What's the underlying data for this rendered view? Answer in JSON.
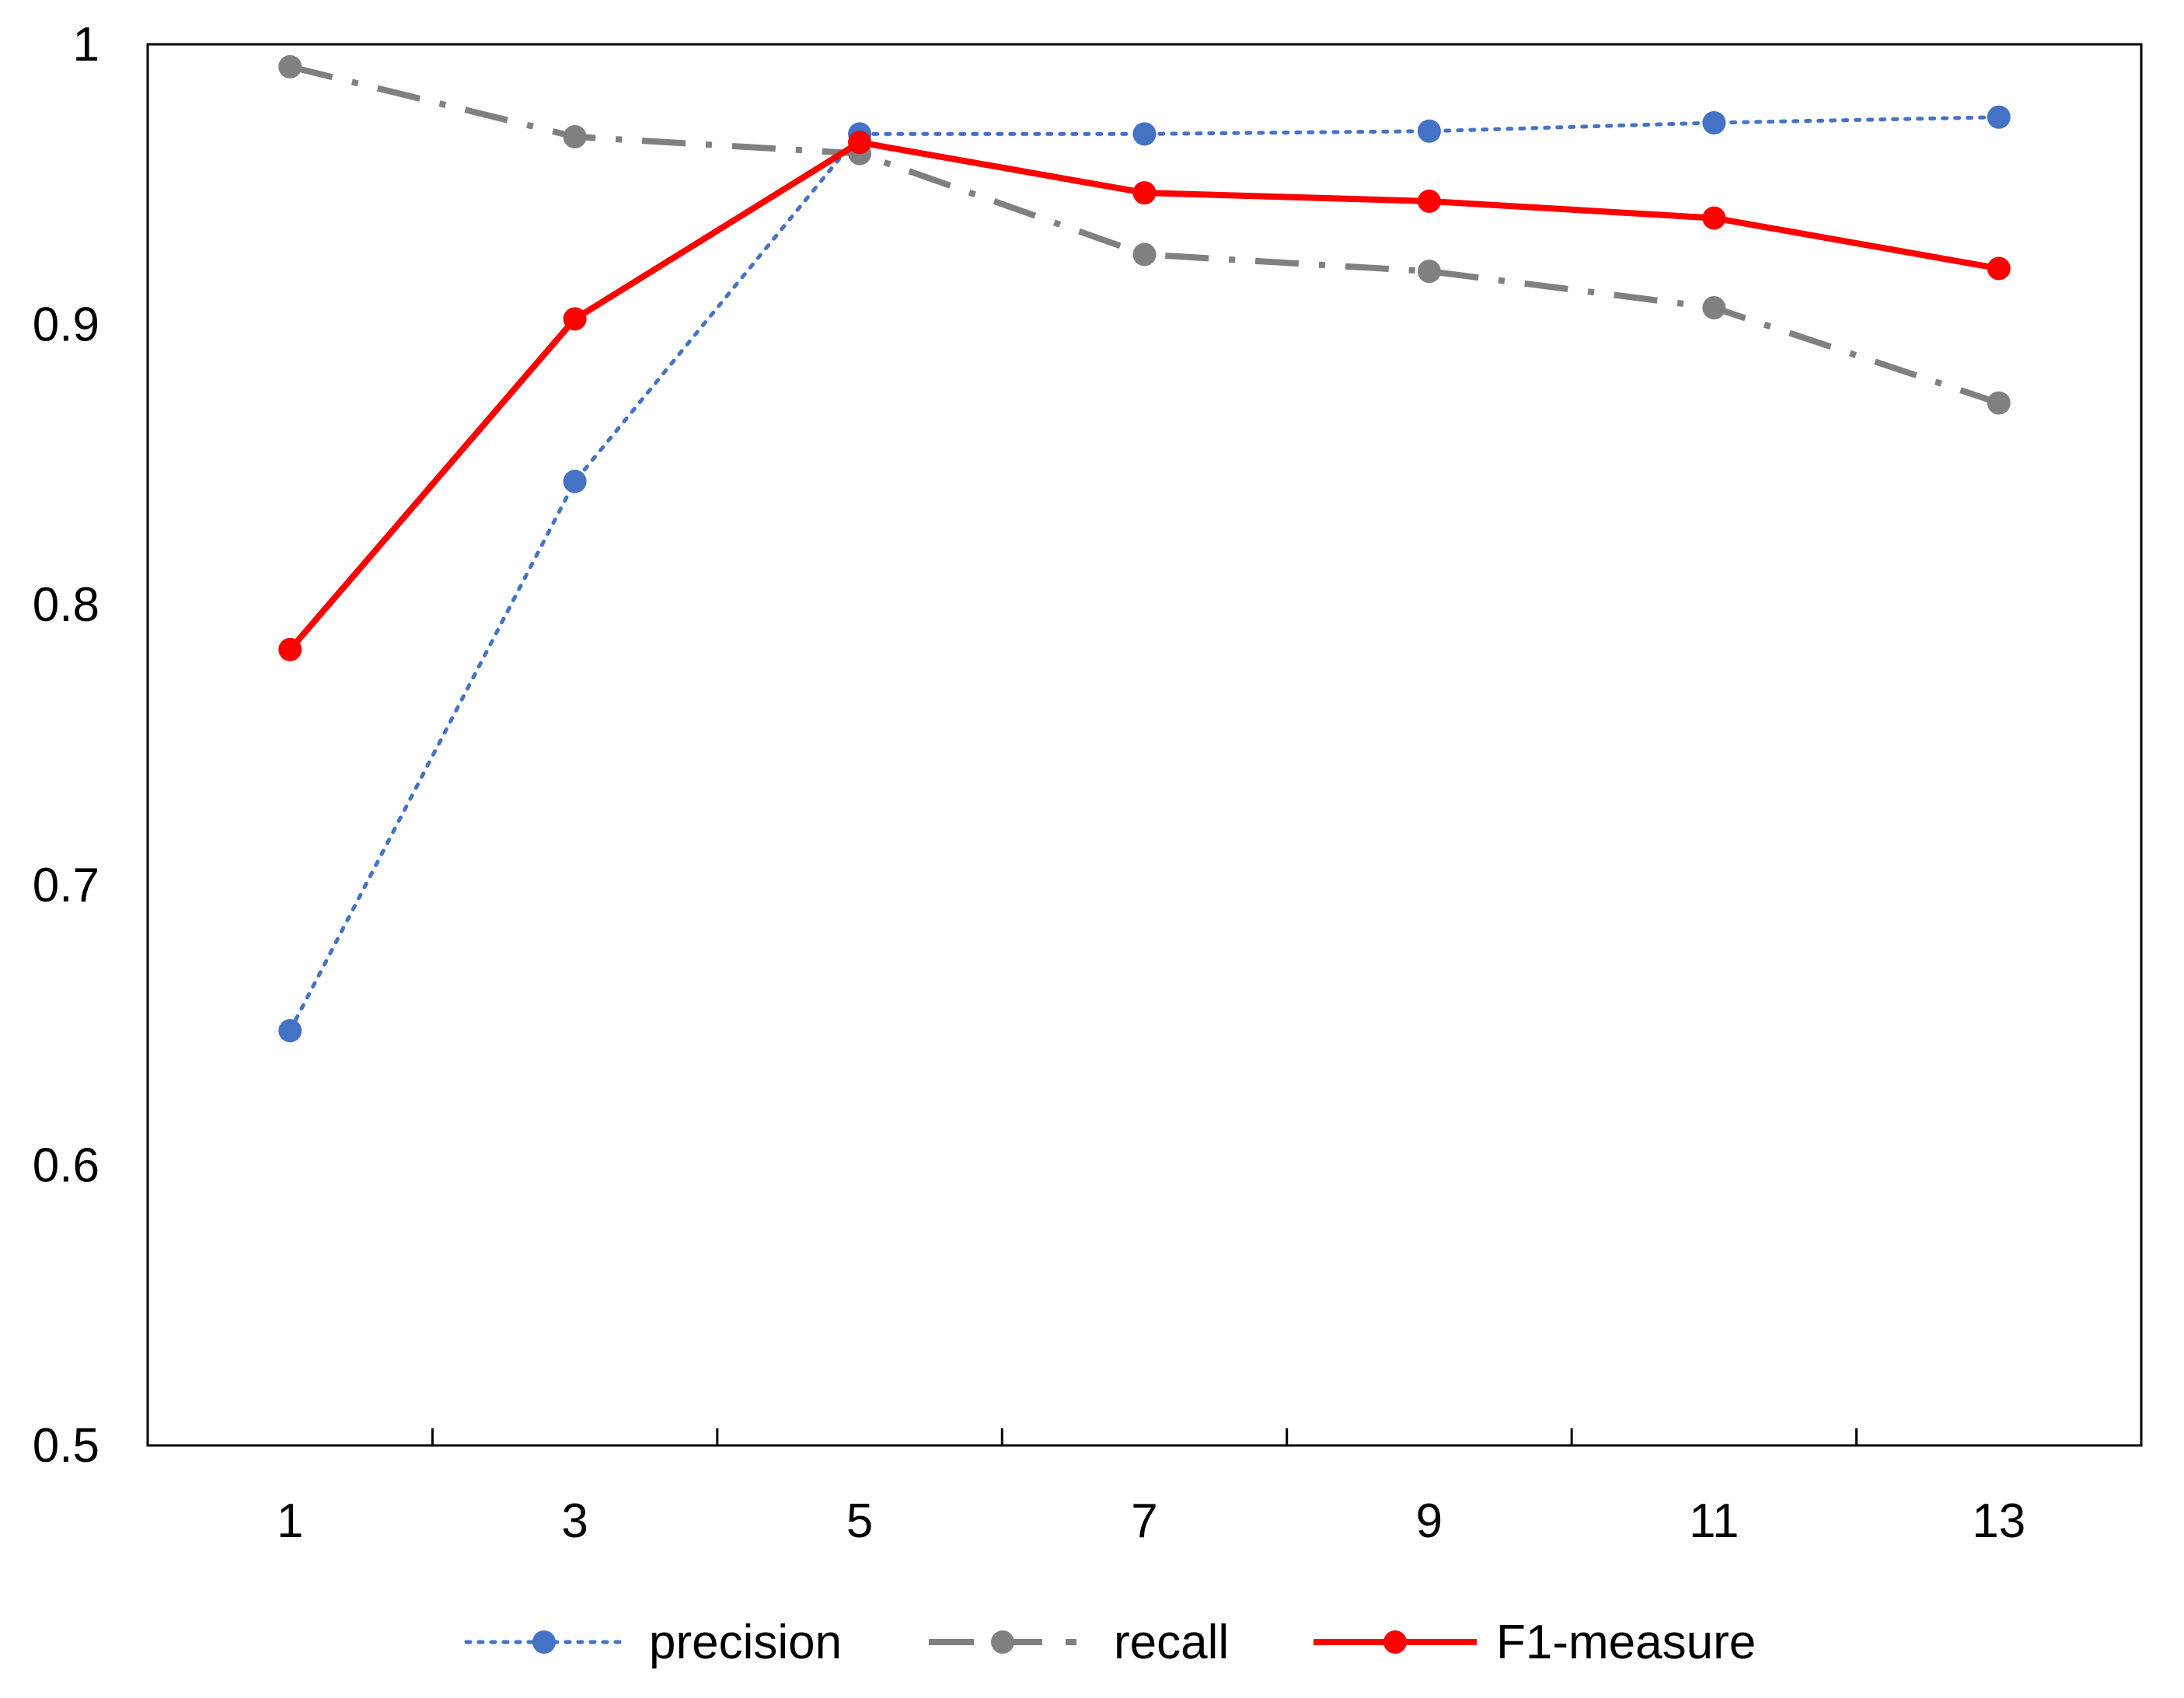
{
  "chart_data": {
    "type": "line",
    "title": "",
    "xlabel": "",
    "ylabel": "",
    "x": [
      1,
      3,
      5,
      7,
      9,
      11,
      13
    ],
    "xticks": [
      "1",
      "3",
      "5",
      "7",
      "9",
      "11",
      "13"
    ],
    "xlim": [
      0,
      14
    ],
    "yticks": [
      "0.5",
      "0.6",
      "0.7",
      "0.8",
      "0.9",
      "1"
    ],
    "ylim": [
      0.5,
      1.0
    ],
    "grid": false,
    "legend_position": "bottom",
    "series": [
      {
        "name": "precision",
        "color": "#4472C4",
        "line_style": "dotted",
        "values": [
          0.648,
          0.844,
          0.968,
          0.968,
          0.969,
          0.972,
          0.974
        ]
      },
      {
        "name": "recall",
        "color": "#808080",
        "line_style": "dash-dot",
        "values": [
          0.992,
          0.967,
          0.961,
          0.925,
          0.919,
          0.906,
          0.872
        ]
      },
      {
        "name": "F1-measure",
        "color": "#FF0000",
        "line_style": "solid",
        "values": [
          0.784,
          0.902,
          0.965,
          0.947,
          0.944,
          0.938,
          0.92
        ]
      }
    ]
  }
}
